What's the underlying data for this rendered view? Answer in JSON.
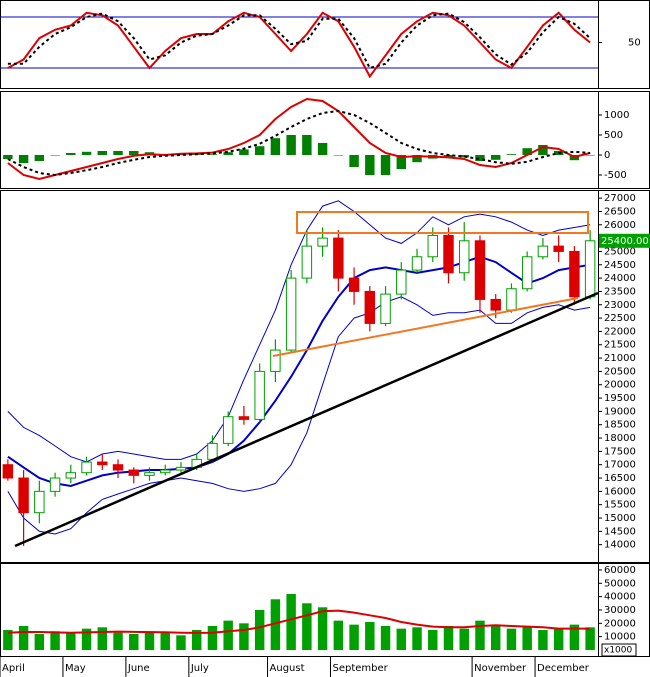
{
  "chart_data": [
    {
      "type": "line",
      "ylim": [
        0,
        100
      ],
      "yticks": [
        50
      ],
      "hlines": [
        20,
        80
      ],
      "hline_color": "#0000cc",
      "series": [
        {
          "color": "#dd0000",
          "dash": false,
          "values": [
            20,
            30,
            55,
            65,
            70,
            85,
            82,
            70,
            45,
            20,
            40,
            55,
            60,
            60,
            75,
            85,
            80,
            60,
            40,
            60,
            85,
            75,
            45,
            10,
            35,
            60,
            75,
            85,
            82,
            70,
            50,
            30,
            20,
            45,
            70,
            85,
            65,
            50
          ]
        },
        {
          "color": "#000000",
          "dash": true,
          "values": [
            25,
            25,
            45,
            60,
            68,
            80,
            84,
            75,
            55,
            30,
            35,
            50,
            58,
            60,
            70,
            82,
            82,
            66,
            48,
            52,
            78,
            78,
            55,
            20,
            25,
            50,
            70,
            82,
            84,
            74,
            56,
            36,
            24,
            38,
            62,
            80,
            72,
            55
          ]
        }
      ]
    },
    {
      "type": "macd",
      "ylim": [
        -800,
        1550
      ],
      "yticks": [
        -500,
        0,
        500,
        1000
      ],
      "histogram_color": "#008000",
      "histogram": [
        -100,
        -200,
        -150,
        0,
        50,
        80,
        100,
        100,
        100,
        70,
        20,
        30,
        20,
        20,
        70,
        140,
        220,
        420,
        500,
        500,
        300,
        0,
        -300,
        -500,
        -500,
        -350,
        -180,
        -90,
        -60,
        -60,
        -150,
        -120,
        20,
        170,
        250,
        100,
        -130,
        0
      ],
      "series": [
        {
          "color": "#dd0000",
          "dash": false,
          "values": [
            -200,
            -500,
            -600,
            -500,
            -400,
            -300,
            -200,
            -100,
            -20,
            20,
            0,
            30,
            40,
            60,
            150,
            300,
            500,
            900,
            1200,
            1400,
            1350,
            1100,
            700,
            300,
            50,
            -50,
            -30,
            -40,
            -60,
            -100,
            -250,
            -300,
            -200,
            0,
            200,
            150,
            -50,
            50
          ]
        },
        {
          "color": "#000000",
          "dash": true,
          "values": [
            -100,
            -300,
            -450,
            -500,
            -450,
            -380,
            -300,
            -200,
            -120,
            -50,
            -20,
            0,
            20,
            40,
            80,
            160,
            280,
            480,
            700,
            900,
            1050,
            1100,
            1000,
            800,
            550,
            300,
            150,
            50,
            0,
            -40,
            -100,
            -180,
            -220,
            -170,
            -50,
            50,
            80,
            50
          ]
        }
      ]
    },
    {
      "type": "candlestick",
      "ylim": [
        13350,
        27230
      ],
      "yticks": [
        14000,
        14500,
        15000,
        15500,
        16000,
        16500,
        17000,
        17500,
        18000,
        18500,
        19000,
        19500,
        20000,
        20500,
        21000,
        21500,
        22000,
        22500,
        23000,
        23500,
        24000,
        24500,
        25000,
        25500,
        26000,
        26500,
        27000
      ],
      "up_color": "#00a000",
      "down_color": "#dd0000",
      "open": [
        17000,
        16500,
        15200,
        16000,
        16500,
        16700,
        17100,
        17000,
        16800,
        16600,
        16700,
        16800,
        16900,
        17200,
        17800,
        18800,
        18700,
        20500,
        21300,
        24000,
        25200,
        25500,
        24000,
        23500,
        22300,
        23400,
        24300,
        24800,
        25600,
        24200,
        25400,
        23200,
        22800,
        23600,
        24800,
        25200,
        25000,
        23300
      ],
      "high": [
        17200,
        16800,
        16400,
        16700,
        17000,
        17300,
        17400,
        17200,
        16900,
        16900,
        17000,
        17100,
        17400,
        18100,
        19000,
        19200,
        20800,
        21700,
        24300,
        25800,
        25900,
        25800,
        24400,
        23700,
        23700,
        24600,
        25100,
        25900,
        25900,
        26100,
        25600,
        23400,
        23800,
        25000,
        25500,
        25600,
        25200,
        25800
      ],
      "low": [
        16400,
        13950,
        14800,
        15800,
        16300,
        16600,
        16800,
        16500,
        16300,
        16400,
        16600,
        16700,
        16800,
        17100,
        17700,
        18500,
        18600,
        20100,
        21200,
        23800,
        24800,
        23500,
        23000,
        22000,
        22200,
        23200,
        24200,
        24600,
        23800,
        23900,
        22700,
        22500,
        22700,
        23500,
        24700,
        24600,
        23000,
        23200
      ],
      "close": [
        16500,
        15200,
        16000,
        16500,
        16700,
        17100,
        17000,
        16800,
        16600,
        16700,
        16800,
        16900,
        17200,
        17800,
        18800,
        18700,
        20500,
        21300,
        24000,
        25200,
        25500,
        24000,
        23500,
        22300,
        23400,
        24300,
        24800,
        25600,
        24200,
        25400,
        23200,
        22800,
        23600,
        24800,
        25200,
        25000,
        23300,
        25400
      ],
      "series": [
        {
          "color": "#0000cc",
          "width": 2,
          "values": [
            17300,
            16900,
            16500,
            16300,
            16200,
            16400,
            16600,
            16700,
            16750,
            16800,
            16800,
            16850,
            16900,
            17100,
            17400,
            17900,
            18600,
            19400,
            20300,
            21300,
            22400,
            23300,
            24000,
            24300,
            24400,
            24300,
            24200,
            24300,
            24400,
            24600,
            24800,
            24600,
            24200,
            23800,
            24000,
            24300,
            24400,
            24500
          ]
        },
        {
          "color": "#0000cc",
          "width": 1,
          "values": [
            19000,
            18400,
            18100,
            17700,
            17300,
            17100,
            17400,
            17500,
            17400,
            17300,
            17200,
            17200,
            17400,
            17900,
            18800,
            20200,
            21500,
            22800,
            24500,
            25800,
            26700,
            26900,
            26500,
            26000,
            25500,
            25300,
            25700,
            26300,
            26000,
            26300,
            26400,
            26300,
            26100,
            25800,
            25600,
            25800,
            25900,
            26000
          ]
        },
        {
          "color": "#0000cc",
          "width": 1,
          "values": [
            16000,
            15000,
            14500,
            14400,
            14600,
            15200,
            15700,
            15900,
            16100,
            16300,
            16400,
            16500,
            16400,
            16300,
            16100,
            16000,
            16100,
            16300,
            17000,
            18200,
            20000,
            21800,
            22500,
            22700,
            23100,
            23300,
            23000,
            22600,
            22700,
            22700,
            22800,
            22300,
            22300,
            22700,
            22900,
            23000,
            22800,
            22900
          ]
        }
      ],
      "price_tag": {
        "value": 25400,
        "label": "25400.00"
      },
      "price_tag_color": "#00a000"
    },
    {
      "type": "bar",
      "ylim": [
        0,
        63700
      ],
      "yticks": [
        10000,
        20000,
        30000,
        40000,
        50000,
        60000
      ],
      "color": "#00a000",
      "unit_label": "x1000",
      "categories": [
        "April",
        null,
        null,
        null,
        "May",
        null,
        null,
        null,
        "June",
        null,
        null,
        null,
        "July",
        null,
        null,
        null,
        null,
        "August",
        null,
        null,
        null,
        "September",
        null,
        null,
        null,
        null,
        null,
        null,
        null,
        null,
        "November",
        null,
        null,
        null,
        "December",
        null,
        null,
        null
      ],
      "values": [
        15000,
        18000,
        12000,
        14000,
        13000,
        16000,
        17000,
        13000,
        12000,
        14000,
        13000,
        11000,
        15000,
        18000,
        22000,
        20000,
        30000,
        38000,
        42000,
        35000,
        32000,
        22000,
        19000,
        21000,
        18000,
        16000,
        17000,
        15000,
        18000,
        16000,
        22000,
        18000,
        16000,
        17000,
        15000,
        16000,
        19000,
        17000
      ],
      "series": [
        {
          "color": "#dd0000",
          "width": 2,
          "values": [
            13000,
            13500,
            13500,
            13200,
            13000,
            13200,
            13500,
            13800,
            13600,
            13400,
            13300,
            13000,
            12800,
            13000,
            14000,
            15000,
            17000,
            20000,
            23000,
            26000,
            29000,
            29500,
            28000,
            26000,
            24000,
            21000,
            19000,
            17500,
            17000,
            17000,
            18000,
            18500,
            18000,
            17500,
            17000,
            16000,
            16000,
            16000
          ]
        }
      ]
    }
  ]
}
